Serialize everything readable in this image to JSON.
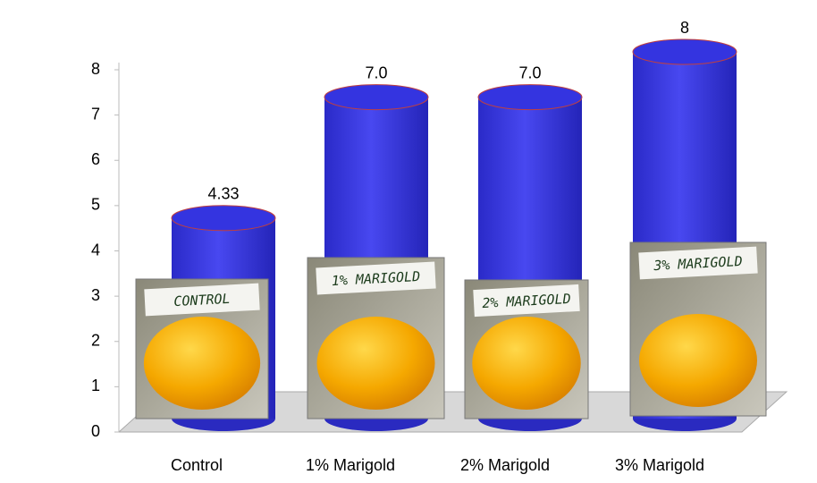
{
  "chart_data": {
    "type": "bar",
    "categories": [
      "Control",
      "1% Marigold",
      "2% Marigold",
      "3% Marigold"
    ],
    "values": [
      4.33,
      7,
      7,
      8
    ],
    "value_labels": [
      "4.33",
      "7.0",
      "7.0",
      "8"
    ],
    "color": "#3434e0",
    "ylim": [
      0,
      8
    ],
    "yticks": [
      0,
      1,
      2,
      3,
      4,
      5,
      6,
      7,
      8
    ],
    "annotations": [
      "CONTROL",
      "1% MARIGOLD",
      "2% MARIGOLD",
      "3% MARIGOLD"
    ]
  }
}
